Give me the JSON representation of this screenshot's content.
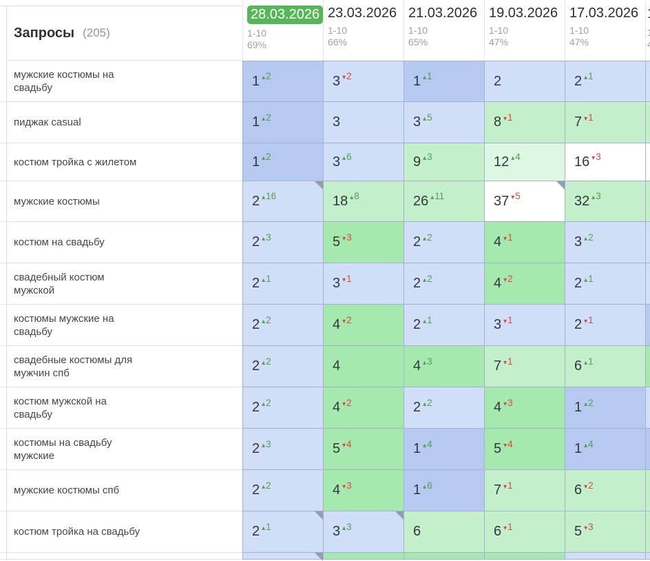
{
  "header": {
    "title": "Запросы",
    "count": "(205)",
    "columns": [
      {
        "date": "28.03.2026",
        "range": "1-10",
        "percent": "69%",
        "selected": true
      },
      {
        "date": "23.03.2026",
        "range": "1-10",
        "percent": "66%",
        "selected": false
      },
      {
        "date": "21.03.2026",
        "range": "1-10",
        "percent": "65%",
        "selected": false
      },
      {
        "date": "19.03.2026",
        "range": "1-10",
        "percent": "47%",
        "selected": false
      },
      {
        "date": "17.03.2026",
        "range": "1-10",
        "percent": "47%",
        "selected": false
      }
    ],
    "clipped_column": {
      "date": "1",
      "range": "1",
      "percent": "4"
    }
  },
  "colors": {
    "selected_date_bg": "#57b657",
    "selected_date_text": "#ffffff",
    "pos_blue_dark": "#b6c9f0",
    "pos_blue_light": "#d0def8",
    "pos_green_med": "#a6e9ae",
    "pos_green_light": "#c3f0cb",
    "pos_green_xlight": "#def7e3",
    "pos_white": "#ffffff",
    "up": "#4f9e52",
    "down": "#d24a43",
    "note_triangle": "#939db0",
    "grid_border": "#a6afd1"
  },
  "rows": [
    {
      "keyword": "мужские костюмы на свадьбу",
      "cells": [
        {
          "pos": "1",
          "delta": "2",
          "dir": "up",
          "bg": "blue_dark"
        },
        {
          "pos": "3",
          "delta": "2",
          "dir": "down",
          "bg": "blue_light"
        },
        {
          "pos": "1",
          "delta": "1",
          "dir": "up",
          "bg": "blue_dark"
        },
        {
          "pos": "2",
          "bg": "blue_light"
        },
        {
          "pos": "2",
          "delta": "1",
          "dir": "up",
          "bg": "blue_light"
        }
      ],
      "clipped_bg": "blue_light"
    },
    {
      "keyword": "пиджак casual",
      "cells": [
        {
          "pos": "1",
          "delta": "2",
          "dir": "up",
          "bg": "blue_dark"
        },
        {
          "pos": "3",
          "bg": "blue_light"
        },
        {
          "pos": "3",
          "delta": "5",
          "dir": "up",
          "bg": "blue_light"
        },
        {
          "pos": "8",
          "delta": "1",
          "dir": "down",
          "bg": "green_light"
        },
        {
          "pos": "7",
          "delta": "1",
          "dir": "down",
          "bg": "green_light"
        }
      ],
      "clipped_bg": "green_light"
    },
    {
      "keyword": "костюм тройка с жилетом",
      "cells": [
        {
          "pos": "1",
          "delta": "2",
          "dir": "up",
          "bg": "blue_dark"
        },
        {
          "pos": "3",
          "delta": "6",
          "dir": "up",
          "bg": "blue_light"
        },
        {
          "pos": "9",
          "delta": "3",
          "dir": "up",
          "bg": "green_light"
        },
        {
          "pos": "12",
          "delta": "4",
          "dir": "up",
          "bg": "green_xlight"
        },
        {
          "pos": "16",
          "delta": "3",
          "dir": "down",
          "bg": "white"
        }
      ],
      "clipped_bg": "white"
    },
    {
      "keyword": "мужские костюмы",
      "cells": [
        {
          "pos": "2",
          "delta": "16",
          "dir": "up",
          "bg": "blue_light",
          "note": true
        },
        {
          "pos": "18",
          "delta": "8",
          "dir": "up",
          "bg": "green_light"
        },
        {
          "pos": "26",
          "delta": "11",
          "dir": "up",
          "bg": "green_light"
        },
        {
          "pos": "37",
          "delta": "5",
          "dir": "down",
          "bg": "white",
          "note": true
        },
        {
          "pos": "32",
          "delta": "3",
          "dir": "up",
          "bg": "green_light"
        }
      ],
      "clipped_bg": "green_light"
    },
    {
      "keyword": "костюм на свадьбу",
      "cells": [
        {
          "pos": "2",
          "delta": "3",
          "dir": "up",
          "bg": "blue_light"
        },
        {
          "pos": "5",
          "delta": "3",
          "dir": "down",
          "bg": "green_med"
        },
        {
          "pos": "2",
          "delta": "2",
          "dir": "up",
          "bg": "blue_light"
        },
        {
          "pos": "4",
          "delta": "1",
          "dir": "down",
          "bg": "green_med"
        },
        {
          "pos": "3",
          "delta": "2",
          "dir": "up",
          "bg": "blue_light"
        }
      ],
      "clipped_bg": "blue_light"
    },
    {
      "keyword": "свадебный костюм мужской",
      "cells": [
        {
          "pos": "2",
          "delta": "1",
          "dir": "up",
          "bg": "blue_light"
        },
        {
          "pos": "3",
          "delta": "1",
          "dir": "down",
          "bg": "blue_light"
        },
        {
          "pos": "2",
          "delta": "2",
          "dir": "up",
          "bg": "blue_light"
        },
        {
          "pos": "4",
          "delta": "2",
          "dir": "down",
          "bg": "green_med"
        },
        {
          "pos": "2",
          "delta": "1",
          "dir": "up",
          "bg": "blue_light"
        }
      ],
      "clipped_bg": "blue_light"
    },
    {
      "keyword": "костюмы мужские на свадьбу",
      "cells": [
        {
          "pos": "2",
          "delta": "2",
          "dir": "up",
          "bg": "blue_light"
        },
        {
          "pos": "4",
          "delta": "2",
          "dir": "down",
          "bg": "green_med"
        },
        {
          "pos": "2",
          "delta": "1",
          "dir": "up",
          "bg": "blue_light"
        },
        {
          "pos": "3",
          "delta": "1",
          "dir": "down",
          "bg": "blue_light"
        },
        {
          "pos": "2",
          "delta": "1",
          "dir": "down",
          "bg": "blue_light"
        }
      ],
      "clipped_bg": "blue_dark"
    },
    {
      "keyword": "свадебные костюмы для мужчин спб",
      "cells": [
        {
          "pos": "2",
          "delta": "2",
          "dir": "up",
          "bg": "blue_light"
        },
        {
          "pos": "4",
          "bg": "green_med"
        },
        {
          "pos": "4",
          "delta": "3",
          "dir": "up",
          "bg": "green_med"
        },
        {
          "pos": "7",
          "delta": "1",
          "dir": "down",
          "bg": "green_light"
        },
        {
          "pos": "6",
          "delta": "1",
          "dir": "up",
          "bg": "green_light"
        }
      ],
      "clipped_bg": "green_med"
    },
    {
      "keyword": "костюм мужской на свадьбу",
      "cells": [
        {
          "pos": "2",
          "delta": "2",
          "dir": "up",
          "bg": "blue_light"
        },
        {
          "pos": "4",
          "delta": "2",
          "dir": "down",
          "bg": "green_med"
        },
        {
          "pos": "2",
          "delta": "2",
          "dir": "up",
          "bg": "blue_light"
        },
        {
          "pos": "4",
          "delta": "3",
          "dir": "down",
          "bg": "green_med"
        },
        {
          "pos": "1",
          "delta": "2",
          "dir": "up",
          "bg": "blue_dark"
        }
      ],
      "clipped_bg": "blue_light"
    },
    {
      "keyword": "костюмы на свадьбу мужские",
      "cells": [
        {
          "pos": "2",
          "delta": "3",
          "dir": "up",
          "bg": "blue_light"
        },
        {
          "pos": "5",
          "delta": "4",
          "dir": "down",
          "bg": "green_med"
        },
        {
          "pos": "1",
          "delta": "4",
          "dir": "up",
          "bg": "blue_dark"
        },
        {
          "pos": "5",
          "delta": "4",
          "dir": "down",
          "bg": "green_med"
        },
        {
          "pos": "1",
          "delta": "4",
          "dir": "up",
          "bg": "blue_dark"
        }
      ],
      "clipped_bg": "blue_dark"
    },
    {
      "keyword": "мужские костюмы спб",
      "cells": [
        {
          "pos": "2",
          "delta": "2",
          "dir": "up",
          "bg": "blue_light"
        },
        {
          "pos": "4",
          "delta": "3",
          "dir": "down",
          "bg": "green_med"
        },
        {
          "pos": "1",
          "delta": "6",
          "dir": "up",
          "bg": "blue_dark"
        },
        {
          "pos": "7",
          "delta": "1",
          "dir": "down",
          "bg": "green_light"
        },
        {
          "pos": "6",
          "delta": "2",
          "dir": "down",
          "bg": "green_light"
        }
      ],
      "clipped_bg": "green_light"
    },
    {
      "keyword": "костюм тройка на свадьбу",
      "cells": [
        {
          "pos": "2",
          "delta": "1",
          "dir": "up",
          "bg": "blue_light",
          "note": true
        },
        {
          "pos": "3",
          "delta": "3",
          "dir": "up",
          "bg": "blue_light",
          "note": true
        },
        {
          "pos": "6",
          "bg": "green_light"
        },
        {
          "pos": "6",
          "delta": "1",
          "dir": "down",
          "bg": "green_light"
        },
        {
          "pos": "5",
          "delta": "3",
          "dir": "down",
          "bg": "green_light"
        }
      ],
      "clipped_bg": "green_light"
    }
  ],
  "partial_row": {
    "cells": [
      {
        "bg": "blue_light",
        "note": true
      },
      {
        "bg": "green_med"
      },
      {
        "bg": "green_med"
      },
      {
        "bg": "green_med"
      },
      {
        "bg": "blue_light"
      }
    ],
    "clipped_bg": "blue_light"
  }
}
